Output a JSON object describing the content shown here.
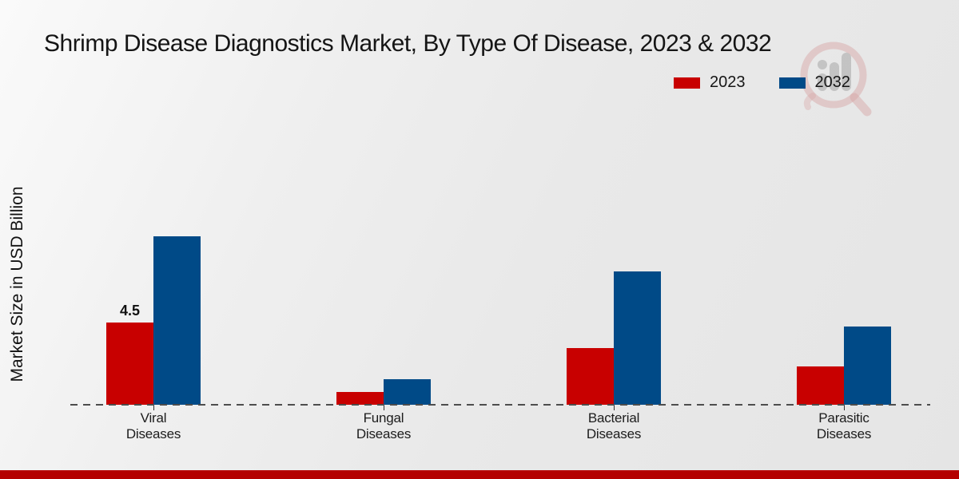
{
  "title": "Shrimp Disease Diagnostics Market, By Type Of Disease, 2023 & 2032",
  "ylabel": "Market Size in USD Billion",
  "legend": {
    "items": [
      {
        "label": "2023",
        "color": "#c80000"
      },
      {
        "label": "2032",
        "color": "#004a87"
      }
    ]
  },
  "colors": {
    "series_2023": "#c80000",
    "series_2032": "#004a87",
    "footer_band": "#b40000",
    "baseline": "#4d4d4d"
  },
  "watermark_icon": "bar-chart-magnifier-logo",
  "chart_data": {
    "type": "bar",
    "categories": [
      "Viral Diseases",
      "Fungal Diseases",
      "Bacterial Diseases",
      "Parasitic Diseases"
    ],
    "series": [
      {
        "name": "2023",
        "color": "#c80000",
        "values": [
          4.5,
          0.7,
          3.1,
          2.1
        ]
      },
      {
        "name": "2032",
        "color": "#004a87",
        "values": [
          9.2,
          1.4,
          7.3,
          4.3
        ]
      }
    ],
    "labeled_points": [
      {
        "series_index": 0,
        "category_index": 0,
        "text": "4.5"
      }
    ],
    "title": "Shrimp Disease Diagnostics Market, By Type Of Disease, 2023 & 2032",
    "xlabel": "",
    "ylabel": "Market Size in USD Billion",
    "ylim": [
      0,
      10
    ],
    "grid": false,
    "baseline_style": "dashed",
    "legend_position": "top-right"
  }
}
